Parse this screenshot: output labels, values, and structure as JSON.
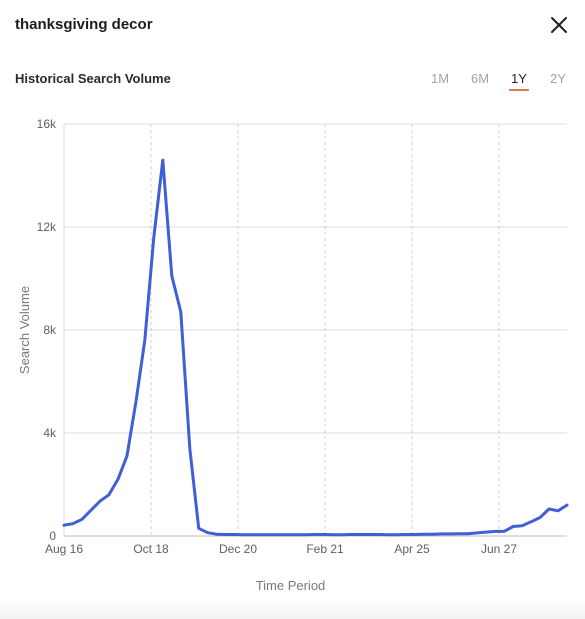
{
  "window": {
    "title": "thanksgiving decor"
  },
  "section": {
    "title": "Historical Search Volume"
  },
  "range_tabs": [
    {
      "label": "1M",
      "active": false
    },
    {
      "label": "6M",
      "active": false
    },
    {
      "label": "1Y",
      "active": true
    },
    {
      "label": "2Y",
      "active": false
    }
  ],
  "icons": {
    "close": "close-icon"
  },
  "colors": {
    "line": "#3f5fd6",
    "accent": "#e07a4e"
  },
  "chart_data": {
    "type": "line",
    "xlabel": "Time Period",
    "ylabel": "Search Volume",
    "ylim": [
      0,
      16000
    ],
    "y_ticks": [
      0,
      4000,
      8000,
      12000,
      16000
    ],
    "y_tick_labels": [
      "0",
      "4k",
      "8k",
      "12k",
      "16k"
    ],
    "x_tick_labels": [
      "Aug 16",
      "Oct 18",
      "Dec 20",
      "Feb 21",
      "Apr 25",
      "Jun 27"
    ],
    "grid": true,
    "series": [
      {
        "values": [
          420,
          480,
          650,
          1000,
          1350,
          1600,
          2200,
          3100,
          5200,
          7600,
          11600,
          14600,
          10100,
          8700,
          3400,
          300,
          130,
          70,
          60,
          60,
          50,
          50,
          50,
          50,
          50,
          50,
          50,
          50,
          60,
          60,
          50,
          50,
          60,
          60,
          60,
          60,
          50,
          50,
          60,
          60,
          70,
          70,
          80,
          80,
          90,
          90,
          120,
          150,
          180,
          180,
          370,
          400,
          550,
          720,
          1050,
          980,
          1200
        ]
      }
    ]
  }
}
